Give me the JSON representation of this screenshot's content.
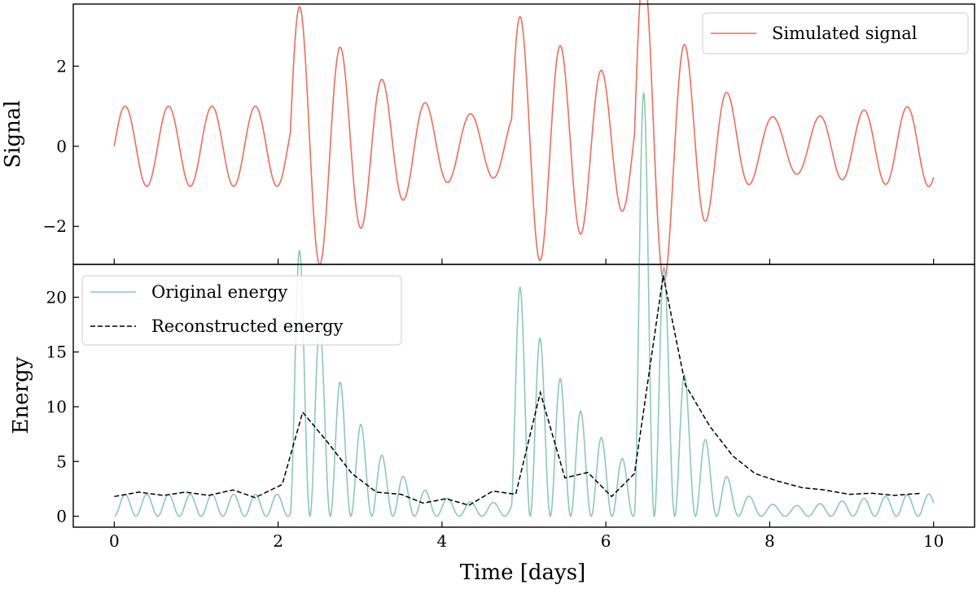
{
  "chart_data": [
    {
      "type": "line",
      "panel": "top",
      "ylabel": "Signal",
      "xlim": [
        -0.5,
        10.5
      ],
      "ylim": [
        -2.95,
        3.55
      ],
      "yticks": [
        -2,
        0,
        2
      ],
      "ytick_labels": [
        "−2",
        "0",
        "2"
      ],
      "legend_position": "upper right",
      "series": [
        {
          "name": "Simulated signal",
          "color": "#f26b5b",
          "style": "solid",
          "description": "Base sinusoid of amplitude 1 and period ~0.53 days, with damped oscillatory bursts starting at ~2.15, ~4.85 and ~6.35 days",
          "base_amplitude": 1.0,
          "base_period_days": 0.53,
          "t_range": [
            0,
            10
          ],
          "bursts": [
            {
              "start": 2.15,
              "amplitude": 2.8,
              "period": 0.48,
              "decay": 1.0
            },
            {
              "start": 4.85,
              "amplitude": 2.9,
              "period": 0.48,
              "decay": 1.0
            },
            {
              "start": 6.35,
              "amplitude": 3.5,
              "period": 0.48,
              "decay": 0.78
            }
          ]
        }
      ]
    },
    {
      "type": "line",
      "panel": "bottom",
      "ylabel": "Energy",
      "xlabel": "Time [days]",
      "xlim": [
        -0.5,
        10.5
      ],
      "ylim": [
        -1.0,
        23.0
      ],
      "xticks": [
        0,
        2,
        4,
        6,
        8,
        10
      ],
      "xtick_labels": [
        "0",
        "2",
        "4",
        "6",
        "8",
        "10"
      ],
      "yticks": [
        0,
        5,
        10,
        15,
        20
      ],
      "ytick_labels": [
        "0",
        "5",
        "10",
        "15",
        "20"
      ],
      "legend_position": "upper left",
      "series": [
        {
          "name": "Original energy",
          "color": "#8cc9b4",
          "style": "solid",
          "description": "Square of the simulated signal, scaled by 2"
        },
        {
          "name": "Reconstructed energy",
          "color": "#000000",
          "style": "dashed",
          "x": [
            0.0,
            0.3,
            0.6,
            0.87,
            1.15,
            1.45,
            1.72,
            2.05,
            2.3,
            2.6,
            2.9,
            3.2,
            3.5,
            3.77,
            4.05,
            4.33,
            4.62,
            4.9,
            5.2,
            5.5,
            5.78,
            6.07,
            6.35,
            6.7,
            6.97,
            7.27,
            7.55,
            7.82,
            8.1,
            8.4,
            8.67,
            8.97,
            9.25,
            9.52,
            9.85
          ],
          "y": [
            1.8,
            2.2,
            1.9,
            2.2,
            1.9,
            2.4,
            1.7,
            2.9,
            9.5,
            6.8,
            3.9,
            2.2,
            2.0,
            1.2,
            1.6,
            1.0,
            2.3,
            2.0,
            11.3,
            3.5,
            4.0,
            1.8,
            3.9,
            22.0,
            12.0,
            8.2,
            5.5,
            3.9,
            3.2,
            2.6,
            2.4,
            2.0,
            2.1,
            1.9,
            2.1
          ]
        }
      ]
    }
  ],
  "top": {
    "ylabel": "Signal",
    "legend": [
      "Simulated signal"
    ],
    "yticks": [
      "−2",
      "0",
      "2"
    ]
  },
  "bottom": {
    "ylabel": "Energy",
    "xlabel": "Time [days]",
    "legend": [
      "Original energy",
      "Reconstructed energy"
    ],
    "yticks": [
      "0",
      "5",
      "10",
      "15",
      "20"
    ],
    "xticks": [
      "0",
      "2",
      "4",
      "6",
      "8",
      "10"
    ]
  }
}
